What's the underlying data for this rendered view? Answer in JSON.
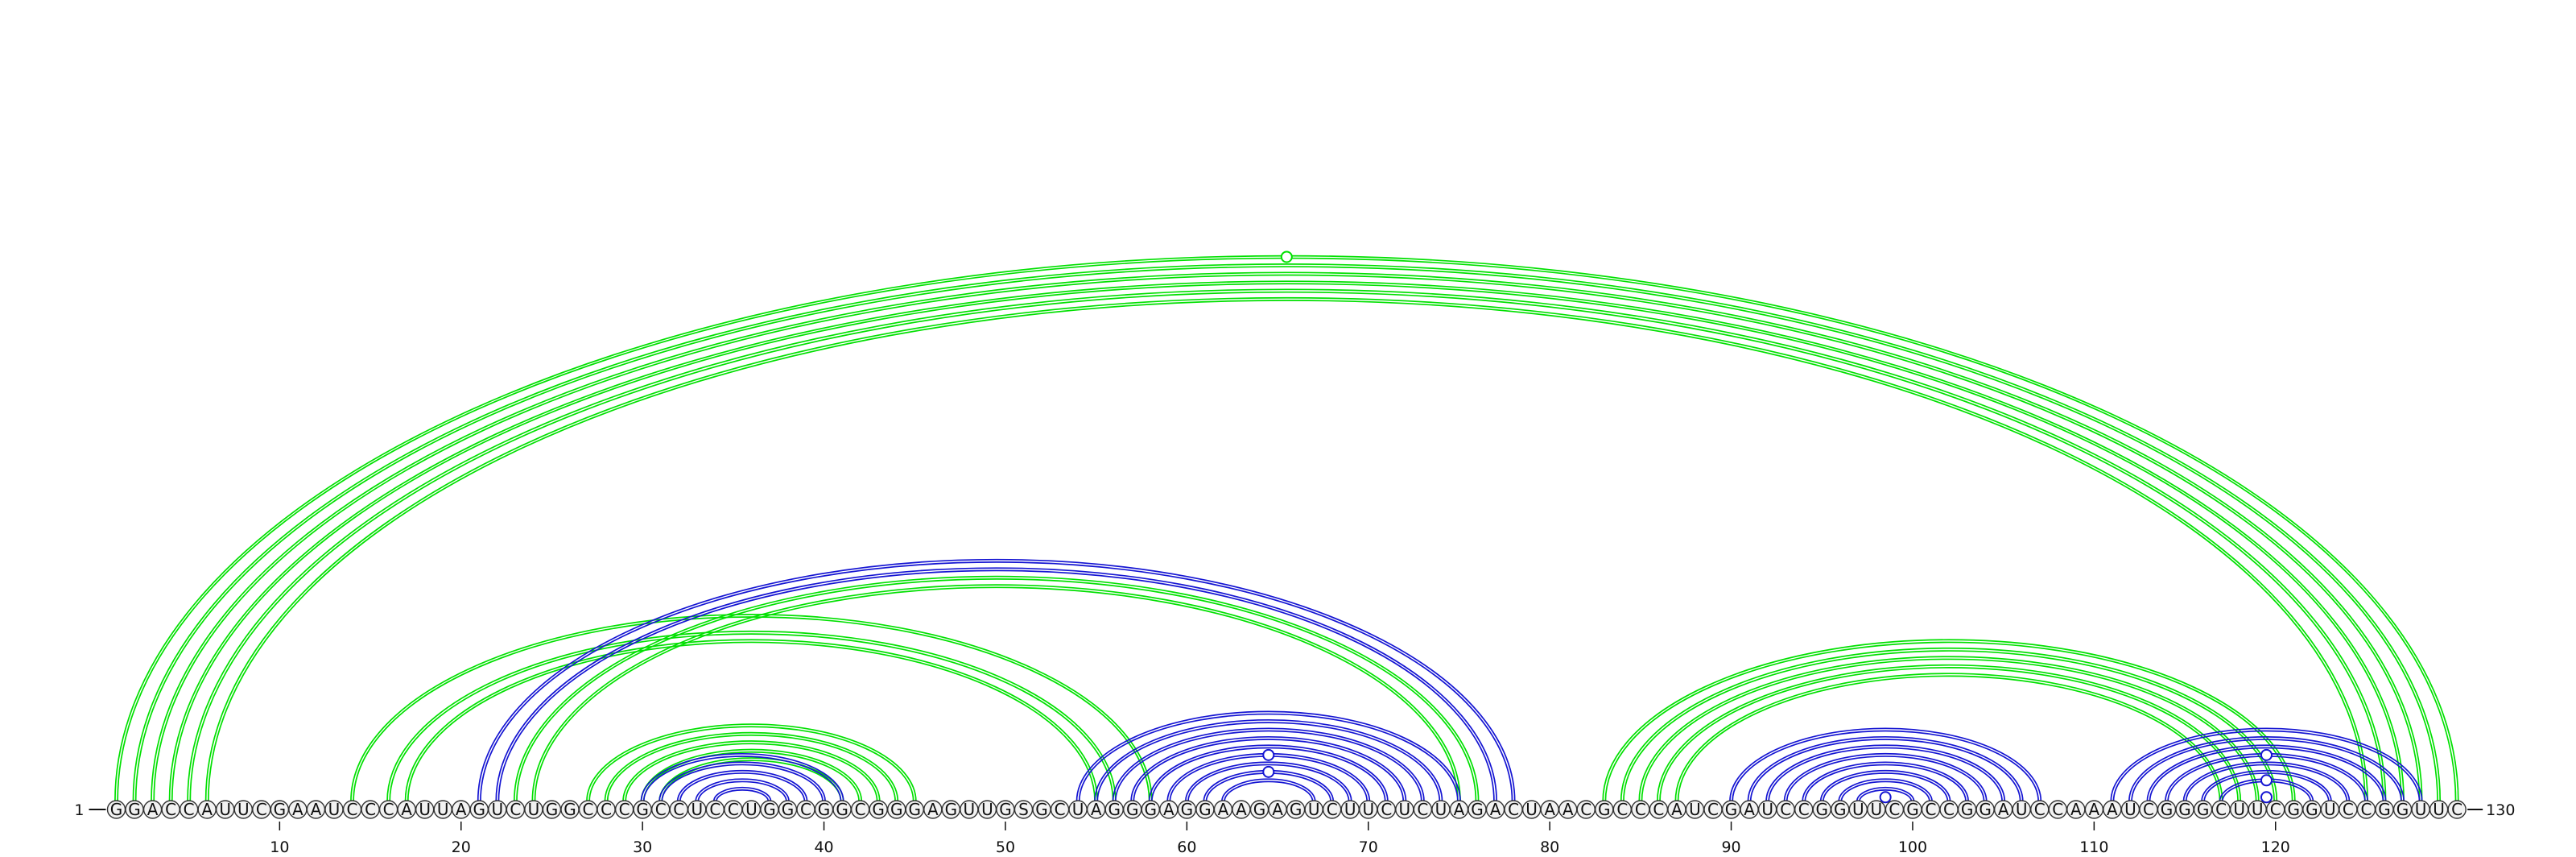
{
  "sequence": "GGACCAUUCGAAUCCCAUUAGUCUGGCCCGCCUCCUGGCGGCGGGAGUUGSGCUAGGGAGGAAGAGUCUUCUCUAGACUAACGCCCAUCGAUCCGGUUCGCCGGAUCCAAAUCGGGCUUCGGUCCGGUUC",
  "start_label": "1",
  "end_label": "130",
  "tick_labels": [
    "10",
    "20",
    "30",
    "40",
    "50",
    "60",
    "70",
    "80",
    "90",
    "100",
    "110",
    "120"
  ],
  "colors": {
    "structure_a": "#00e000",
    "structure_b": "#1414d2",
    "base_fill": "#f2f2f2",
    "base_stroke": "#333333"
  },
  "arc_groups": [
    {
      "structure": "a",
      "start": 1,
      "end": 130,
      "count": 1
    },
    {
      "structure": "a",
      "start": 2,
      "end": 129,
      "count": 1
    },
    {
      "structure": "a",
      "start": 3,
      "end": 128,
      "count": 4
    },
    {
      "structure": "a",
      "start": 14,
      "end": 58,
      "count": 1
    },
    {
      "structure": "a",
      "start": 16,
      "end": 56,
      "count": 2
    },
    {
      "structure": "b",
      "start": 21,
      "end": 78,
      "count": 2
    },
    {
      "structure": "a",
      "start": 23,
      "end": 76,
      "count": 2
    },
    {
      "structure": "a",
      "start": 27,
      "end": 45,
      "count": 5
    },
    {
      "structure": "b",
      "start": 30,
      "end": 41,
      "count": 5
    },
    {
      "structure": "b",
      "start": 54,
      "end": 75,
      "count": 9
    },
    {
      "structure": "a",
      "start": 83,
      "end": 121,
      "count": 5
    },
    {
      "structure": "b",
      "start": 90,
      "end": 107,
      "count": 8
    },
    {
      "structure": "b",
      "start": 111,
      "end": 128,
      "count": 7
    }
  ],
  "bulge_markers": [
    {
      "structure": "a",
      "between": [
        1,
        130
      ]
    },
    {
      "structure": "b",
      "between": [
        59,
        70
      ]
    },
    {
      "structure": "b",
      "between": [
        61,
        68
      ]
    },
    {
      "structure": "b",
      "between": [
        98,
        99
      ]
    },
    {
      "structure": "b",
      "between": [
        114,
        125
      ]
    },
    {
      "structure": "b",
      "between": [
        117,
        122
      ]
    },
    {
      "structure": "b",
      "between": [
        119,
        120
      ]
    }
  ]
}
